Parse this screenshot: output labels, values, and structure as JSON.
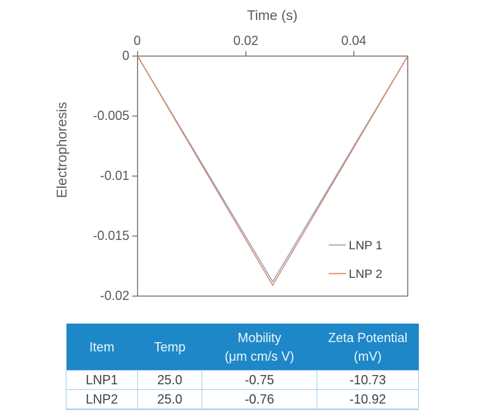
{
  "chart_data": {
    "type": "line",
    "title": "",
    "x_axis": {
      "label": "Time (s)",
      "position": "top",
      "min": 0,
      "max": 0.05,
      "ticks": [
        0,
        0.02,
        0.04
      ],
      "tick_labels": [
        "0",
        "0.02",
        "0.04"
      ]
    },
    "y_axis": {
      "label": "Electrophoresis",
      "min": -0.02,
      "max": 0,
      "ticks": [
        0,
        -0.005,
        -0.01,
        -0.015,
        -0.02
      ],
      "tick_labels": [
        "0",
        "-0.005",
        "-0.01",
        "-0.015",
        "-0.02"
      ]
    },
    "grid": false,
    "legend_position": "inside-bottom-right",
    "series": [
      {
        "name": "LNP 1",
        "color": "#8ba3c3",
        "x": [
          0,
          0.025,
          0.05
        ],
        "y": [
          0,
          -0.0188,
          0
        ]
      },
      {
        "name": "LNP 2",
        "color": "#d9855f",
        "x": [
          0,
          0.025,
          0.05
        ],
        "y": [
          0,
          -0.0191,
          0
        ]
      }
    ]
  },
  "table": {
    "columns": [
      {
        "label": "Item",
        "sub": ""
      },
      {
        "label": "Temp",
        "sub": ""
      },
      {
        "label": "Mobility",
        "sub": "(μm cm/s V)"
      },
      {
        "label": "Zeta Potential",
        "sub": "(mV)"
      }
    ],
    "rows": [
      [
        "LNP1",
        "25.0",
        "-0.75",
        "-10.73"
      ],
      [
        "LNP2",
        "25.0",
        "-0.76",
        "-10.92"
      ]
    ]
  },
  "colors": {
    "header_bg": "#1d87c7",
    "header_text": "#eef7fc",
    "table_border": "#a6d3ec",
    "body_text": "#404040",
    "axis_text": "#595959",
    "axis_line": "#6a6a6a"
  }
}
